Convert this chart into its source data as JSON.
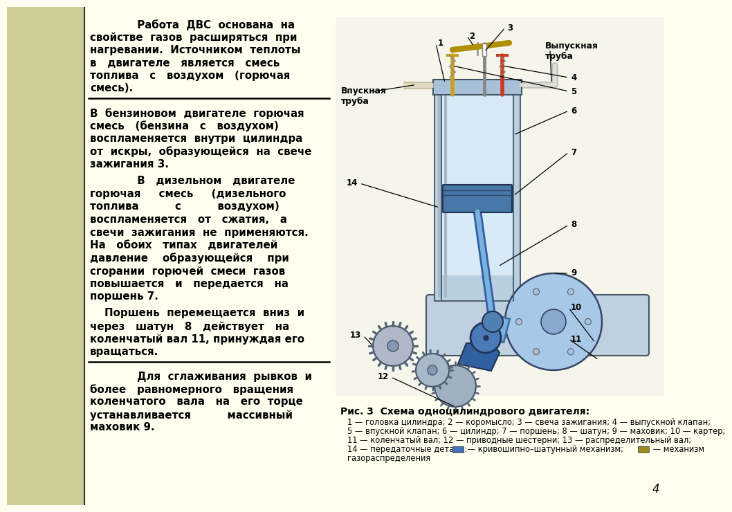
{
  "bg_color": "#fffff0",
  "left_strip_color": "#cece96",
  "text_color": "#000000",
  "p1_lines": [
    "             Работа  ДВС  основана  на",
    "свойстве  газов  расширяться  при",
    "нагревании.  Источником  теплоты",
    "в   двигателе   является   смесь",
    "топлива   с   воздухом   (горючая",
    "смесь)."
  ],
  "p2_lines": [
    "В  бензиновом  двигателе  горючая",
    "смесь   (бензина   с   воздухом)",
    "воспламеняется  внутри  цилиндра",
    "от  искры,  образующейся  на  свече",
    "зажигания 3."
  ],
  "p3_lines": [
    "             В   дизельном   двигателе",
    "горючая     смесь     (дизельного",
    "топлива          с          воздухом)",
    "воспламеняется   от   сжатия,   а",
    "свечи  зажигания  не  применяются.",
    "На   обоих   типах   двигателей",
    "давление    образующейся    при",
    "сгорании  горючей  смеси  газов",
    "повышается   и   передается   на",
    "поршень 7."
  ],
  "p4_lines": [
    "    Поршень  перемещается  вниз  и",
    "через   шатун   8   действует   на",
    "коленчатый вал 11, принуждая его",
    "вращаться."
  ],
  "p5_lines": [
    "             Для  сглаживания  рывков  и",
    "более   равномерного   вращения",
    "коленчатого   вала   на   его  торце",
    "устанавливается          массивный",
    "маховик 9."
  ],
  "cap_title": "Рис. 3  Схема одноцилиндрового двигателя:",
  "cap1": "1 — головка цилиндра; 2 — коромысло; 3 — свеча зажигания; 4 — выпускной клапан;",
  "cap2": "5 — впускной клапан; 6 — цилиндр; 7 — поршень; 8 — шатун; 9 — маховик; 10 — картер;",
  "cap3": "11 — коленчатый вал; 12 — приводные шестерни; 13 — распределительный вал;",
  "cap4a": "14 — передаточные детали: ",
  "cap4b": " — кривошипно–шатунный механизм; ",
  "cap4c": " — механизм",
  "cap5": "газораспределения",
  "blue_swatch": "#4472b8",
  "olive_swatch": "#9a8c20",
  "page_num": "4",
  "label_vpusk": "Впускная\nтруба",
  "label_vypusk": "Выпускная\nтруба"
}
